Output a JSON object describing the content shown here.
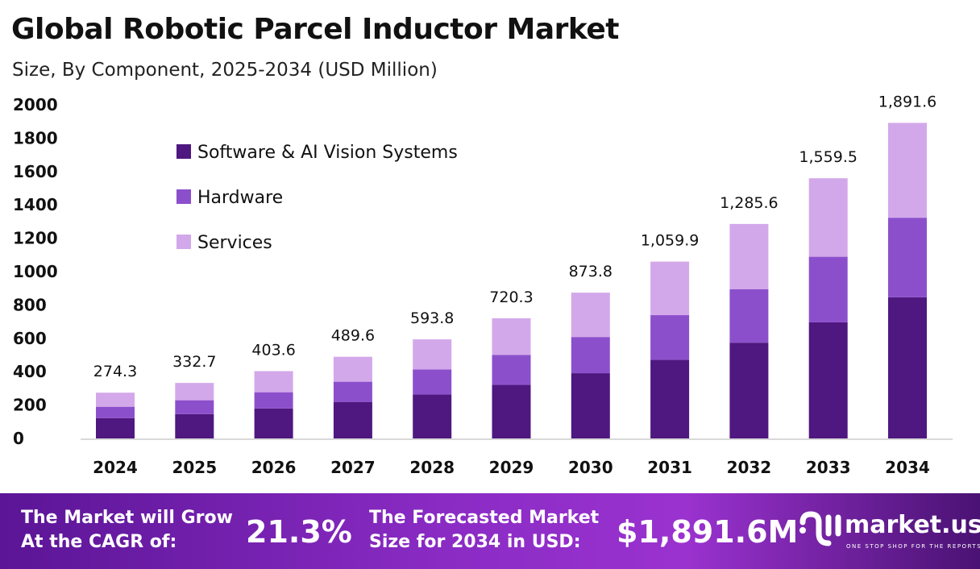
{
  "title": "Global Robotic Parcel Inductor Market",
  "subtitle": "Size, By Component, 2025-2034 (USD Million)",
  "chart_data": {
    "type": "bar",
    "stacked": true,
    "categories": [
      "2024",
      "2025",
      "2026",
      "2027",
      "2028",
      "2029",
      "2030",
      "2031",
      "2032",
      "2033",
      "2034"
    ],
    "series": [
      {
        "name": "Software & AI Vision Systems",
        "color": "#4f1780",
        "values": [
          122,
          146,
          180,
          219,
          263,
          321,
          391,
          472,
          574,
          696,
          846
        ]
      },
      {
        "name": "Hardware",
        "color": "#8c4fcc",
        "values": [
          68,
          83,
          97,
          121,
          150,
          180,
          217,
          267,
          321,
          393,
          477
        ]
      },
      {
        "name": "Services",
        "color": "#d3a8ea",
        "values": [
          84.3,
          103.7,
          126.6,
          149.6,
          180.8,
          219.3,
          265.8,
          320.9,
          390.6,
          470.5,
          568.6
        ]
      }
    ],
    "totals": [
      "274.3",
      "332.7",
      "403.6",
      "489.6",
      "593.8",
      "720.3",
      "873.8",
      "1,059.9",
      "1,285.6",
      "1,559.5",
      "1,891.6"
    ],
    "totals_values": [
      274.3,
      332.7,
      403.6,
      489.6,
      593.8,
      720.3,
      873.8,
      1059.9,
      1285.6,
      1559.5,
      1891.6
    ],
    "yticks": [
      "0",
      "200",
      "400",
      "600",
      "800",
      "1000",
      "1200",
      "1400",
      "1600",
      "1800",
      "2000"
    ],
    "ylim": [
      0,
      2000
    ],
    "grid": false,
    "legend_position": "top-left"
  },
  "banner": {
    "cagr_label": "The Market will Grow At the CAGR of:",
    "cagr_line1": "The Market will Grow",
    "cagr_line2": "At the CAGR of:",
    "cagr_value": "21.3%",
    "forecast_line1": "The Forecasted Market",
    "forecast_line2": "Size for 2034 in USD:",
    "forecast_value": "$1,891.6M",
    "logo_name": "market.us",
    "logo_tagline": "ONE STOP SHOP FOR THE REPORTS"
  }
}
